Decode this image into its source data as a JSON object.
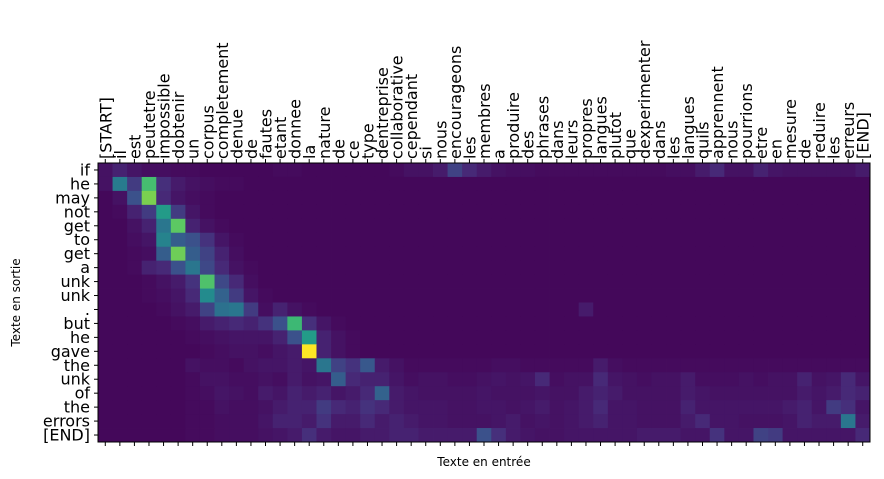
{
  "chart_data": {
    "type": "heatmap",
    "title": "",
    "xlabel": "Texte en entrée",
    "ylabel": "Texte en sortie",
    "colormap": "viridis",
    "value_range": [
      0,
      1
    ],
    "x_tick_position": "top",
    "x_categories": [
      "[START]",
      "il",
      "est",
      "peutetre",
      "impossible",
      "dobtenir",
      "un",
      "corpus",
      "completement",
      "denue",
      "de",
      "fautes",
      "etant",
      "donnee",
      "la",
      "nature",
      "de",
      "ce",
      "type",
      "dentreprise",
      "collaborative",
      "cependant",
      "si",
      "nous",
      "encourageons",
      "les",
      "membres",
      "a",
      "produire",
      "des",
      "phrases",
      "dans",
      "leurs",
      "propres",
      "langues",
      "plutot",
      "que",
      "dexperimenter",
      "dans",
      "les",
      "langues",
      "quils",
      "apprennent",
      "nous",
      "pourrions",
      "etre",
      "en",
      "mesure",
      "de",
      "reduire",
      "les",
      "erreurs",
      "[END]"
    ],
    "y_categories": [
      "if",
      "he",
      "may",
      "not",
      "get",
      "to",
      "get",
      "a",
      "unk",
      "unk",
      ".",
      "but",
      "he",
      "gave",
      "the",
      "unk",
      "of",
      "the",
      "errors",
      "[END]"
    ],
    "values": [
      [
        0.05,
        0.1,
        0.06,
        0.04,
        0.04,
        0.03,
        0.03,
        0.02,
        0.02,
        0.02,
        0.02,
        0.02,
        0.03,
        0.03,
        0.02,
        0.02,
        0.02,
        0.02,
        0.02,
        0.02,
        0.03,
        0.05,
        0.05,
        0.08,
        0.2,
        0.12,
        0.08,
        0.05,
        0.04,
        0.04,
        0.03,
        0.03,
        0.03,
        0.03,
        0.03,
        0.03,
        0.03,
        0.03,
        0.03,
        0.04,
        0.04,
        0.08,
        0.12,
        0.05,
        0.05,
        0.1,
        0.06,
        0.05,
        0.05,
        0.05,
        0.05,
        0.05,
        0.08
      ],
      [
        0.05,
        0.42,
        0.18,
        0.7,
        0.14,
        0.08,
        0.05,
        0.04,
        0.03,
        0.03,
        0.02,
        0.02,
        0.02,
        0.02,
        0.02,
        0.02,
        0.02,
        0.02,
        0.02,
        0.02,
        0.02,
        0.02,
        0.02,
        0.02,
        0.02,
        0.02,
        0.02,
        0.02,
        0.02,
        0.02,
        0.02,
        0.02,
        0.02,
        0.02,
        0.02,
        0.02,
        0.02,
        0.02,
        0.02,
        0.02,
        0.02,
        0.02,
        0.02,
        0.02,
        0.02,
        0.02,
        0.02,
        0.02,
        0.02,
        0.02,
        0.02,
        0.02,
        0.02
      ],
      [
        0.02,
        0.05,
        0.25,
        0.8,
        0.12,
        0.06,
        0.04,
        0.03,
        0.02,
        0.02,
        0.02,
        0.02,
        0.02,
        0.02,
        0.02,
        0.02,
        0.02,
        0.02,
        0.02,
        0.02,
        0.02,
        0.02,
        0.02,
        0.02,
        0.02,
        0.02,
        0.02,
        0.02,
        0.02,
        0.02,
        0.02,
        0.02,
        0.02,
        0.02,
        0.02,
        0.02,
        0.02,
        0.02,
        0.02,
        0.02,
        0.02,
        0.02,
        0.02,
        0.02,
        0.02,
        0.02,
        0.02,
        0.02,
        0.02,
        0.02,
        0.02,
        0.02,
        0.02
      ],
      [
        0.02,
        0.03,
        0.1,
        0.18,
        0.55,
        0.18,
        0.06,
        0.03,
        0.02,
        0.02,
        0.02,
        0.02,
        0.02,
        0.02,
        0.02,
        0.02,
        0.02,
        0.02,
        0.02,
        0.02,
        0.02,
        0.02,
        0.02,
        0.02,
        0.02,
        0.02,
        0.02,
        0.02,
        0.02,
        0.02,
        0.02,
        0.02,
        0.02,
        0.02,
        0.02,
        0.02,
        0.02,
        0.02,
        0.02,
        0.02,
        0.02,
        0.02,
        0.02,
        0.02,
        0.02,
        0.02,
        0.02,
        0.02,
        0.02,
        0.02,
        0.02,
        0.02,
        0.02
      ],
      [
        0.02,
        0.02,
        0.05,
        0.1,
        0.4,
        0.75,
        0.1,
        0.05,
        0.03,
        0.02,
        0.02,
        0.02,
        0.02,
        0.02,
        0.02,
        0.02,
        0.02,
        0.02,
        0.02,
        0.02,
        0.02,
        0.02,
        0.02,
        0.02,
        0.02,
        0.02,
        0.02,
        0.02,
        0.02,
        0.02,
        0.02,
        0.02,
        0.02,
        0.02,
        0.02,
        0.02,
        0.02,
        0.02,
        0.02,
        0.02,
        0.02,
        0.02,
        0.02,
        0.02,
        0.02,
        0.02,
        0.02,
        0.02,
        0.02,
        0.02,
        0.02,
        0.02,
        0.02
      ],
      [
        0.02,
        0.02,
        0.04,
        0.06,
        0.45,
        0.3,
        0.25,
        0.15,
        0.06,
        0.03,
        0.02,
        0.02,
        0.02,
        0.02,
        0.02,
        0.02,
        0.02,
        0.02,
        0.02,
        0.02,
        0.02,
        0.02,
        0.02,
        0.02,
        0.02,
        0.02,
        0.02,
        0.02,
        0.02,
        0.02,
        0.02,
        0.02,
        0.02,
        0.02,
        0.02,
        0.02,
        0.02,
        0.02,
        0.02,
        0.02,
        0.02,
        0.02,
        0.02,
        0.02,
        0.02,
        0.02,
        0.02,
        0.02,
        0.02,
        0.02,
        0.02,
        0.02,
        0.02
      ],
      [
        0.02,
        0.02,
        0.03,
        0.04,
        0.3,
        0.78,
        0.3,
        0.2,
        0.1,
        0.04,
        0.02,
        0.02,
        0.02,
        0.02,
        0.02,
        0.02,
        0.02,
        0.02,
        0.02,
        0.02,
        0.02,
        0.02,
        0.02,
        0.02,
        0.02,
        0.02,
        0.02,
        0.02,
        0.02,
        0.02,
        0.02,
        0.02,
        0.02,
        0.02,
        0.02,
        0.02,
        0.02,
        0.02,
        0.02,
        0.02,
        0.02,
        0.02,
        0.02,
        0.02,
        0.02,
        0.02,
        0.02,
        0.02,
        0.02,
        0.02,
        0.02,
        0.02,
        0.02
      ],
      [
        0.02,
        0.02,
        0.03,
        0.1,
        0.12,
        0.25,
        0.4,
        0.22,
        0.12,
        0.05,
        0.03,
        0.02,
        0.02,
        0.02,
        0.02,
        0.02,
        0.02,
        0.02,
        0.02,
        0.02,
        0.02,
        0.02,
        0.02,
        0.02,
        0.02,
        0.02,
        0.02,
        0.02,
        0.02,
        0.02,
        0.02,
        0.02,
        0.02,
        0.02,
        0.02,
        0.02,
        0.02,
        0.02,
        0.02,
        0.02,
        0.02,
        0.02,
        0.02,
        0.02,
        0.02,
        0.02,
        0.02,
        0.02,
        0.02,
        0.02,
        0.02,
        0.02,
        0.02
      ],
      [
        0.02,
        0.02,
        0.02,
        0.03,
        0.05,
        0.08,
        0.15,
        0.72,
        0.22,
        0.12,
        0.04,
        0.02,
        0.02,
        0.02,
        0.02,
        0.02,
        0.02,
        0.02,
        0.02,
        0.02,
        0.02,
        0.02,
        0.02,
        0.02,
        0.02,
        0.02,
        0.02,
        0.02,
        0.02,
        0.02,
        0.02,
        0.02,
        0.02,
        0.02,
        0.02,
        0.02,
        0.02,
        0.02,
        0.02,
        0.02,
        0.02,
        0.02,
        0.02,
        0.02,
        0.02,
        0.02,
        0.02,
        0.02,
        0.02,
        0.02,
        0.02,
        0.02,
        0.02
      ],
      [
        0.02,
        0.02,
        0.02,
        0.03,
        0.04,
        0.06,
        0.12,
        0.48,
        0.32,
        0.18,
        0.06,
        0.03,
        0.02,
        0.02,
        0.02,
        0.02,
        0.02,
        0.02,
        0.02,
        0.02,
        0.02,
        0.02,
        0.02,
        0.02,
        0.02,
        0.02,
        0.02,
        0.02,
        0.02,
        0.02,
        0.02,
        0.02,
        0.02,
        0.02,
        0.02,
        0.02,
        0.02,
        0.02,
        0.02,
        0.02,
        0.02,
        0.02,
        0.02,
        0.02,
        0.02,
        0.02,
        0.02,
        0.02,
        0.02,
        0.02,
        0.02,
        0.02,
        0.02
      ],
      [
        0.02,
        0.02,
        0.02,
        0.02,
        0.03,
        0.05,
        0.08,
        0.2,
        0.38,
        0.4,
        0.18,
        0.04,
        0.1,
        0.05,
        0.03,
        0.02,
        0.02,
        0.02,
        0.02,
        0.02,
        0.02,
        0.02,
        0.02,
        0.02,
        0.02,
        0.02,
        0.02,
        0.02,
        0.02,
        0.02,
        0.02,
        0.02,
        0.02,
        0.08,
        0.02,
        0.02,
        0.02,
        0.02,
        0.02,
        0.02,
        0.02,
        0.02,
        0.02,
        0.02,
        0.02,
        0.02,
        0.02,
        0.02,
        0.02,
        0.02,
        0.02,
        0.02,
        0.02
      ],
      [
        0.02,
        0.02,
        0.02,
        0.02,
        0.02,
        0.03,
        0.04,
        0.08,
        0.1,
        0.12,
        0.1,
        0.15,
        0.25,
        0.68,
        0.14,
        0.06,
        0.03,
        0.02,
        0.02,
        0.02,
        0.02,
        0.02,
        0.02,
        0.02,
        0.02,
        0.02,
        0.02,
        0.02,
        0.02,
        0.02,
        0.02,
        0.02,
        0.02,
        0.02,
        0.02,
        0.02,
        0.02,
        0.02,
        0.02,
        0.02,
        0.02,
        0.02,
        0.02,
        0.02,
        0.02,
        0.02,
        0.02,
        0.02,
        0.02,
        0.02,
        0.02,
        0.02,
        0.02
      ],
      [
        0.02,
        0.02,
        0.02,
        0.02,
        0.02,
        0.02,
        0.03,
        0.04,
        0.05,
        0.06,
        0.06,
        0.06,
        0.1,
        0.25,
        0.55,
        0.1,
        0.05,
        0.03,
        0.02,
        0.02,
        0.02,
        0.02,
        0.02,
        0.02,
        0.02,
        0.02,
        0.02,
        0.02,
        0.02,
        0.02,
        0.02,
        0.02,
        0.02,
        0.02,
        0.02,
        0.02,
        0.02,
        0.02,
        0.02,
        0.02,
        0.02,
        0.02,
        0.02,
        0.02,
        0.02,
        0.02,
        0.02,
        0.02,
        0.02,
        0.02,
        0.02,
        0.02,
        0.02
      ],
      [
        0.02,
        0.02,
        0.02,
        0.02,
        0.02,
        0.02,
        0.02,
        0.03,
        0.04,
        0.05,
        0.05,
        0.04,
        0.06,
        0.08,
        1.0,
        0.1,
        0.05,
        0.03,
        0.02,
        0.02,
        0.02,
        0.02,
        0.02,
        0.02,
        0.02,
        0.02,
        0.02,
        0.02,
        0.02,
        0.02,
        0.02,
        0.02,
        0.02,
        0.02,
        0.02,
        0.02,
        0.02,
        0.02,
        0.02,
        0.02,
        0.02,
        0.02,
        0.02,
        0.02,
        0.02,
        0.02,
        0.02,
        0.02,
        0.02,
        0.02,
        0.02,
        0.02,
        0.02
      ],
      [
        0.02,
        0.02,
        0.02,
        0.02,
        0.02,
        0.02,
        0.05,
        0.04,
        0.04,
        0.03,
        0.05,
        0.06,
        0.06,
        0.08,
        0.06,
        0.4,
        0.2,
        0.15,
        0.28,
        0.08,
        0.05,
        0.03,
        0.03,
        0.03,
        0.03,
        0.03,
        0.03,
        0.04,
        0.04,
        0.03,
        0.03,
        0.03,
        0.03,
        0.03,
        0.08,
        0.04,
        0.03,
        0.03,
        0.03,
        0.03,
        0.03,
        0.03,
        0.03,
        0.03,
        0.03,
        0.03,
        0.03,
        0.03,
        0.03,
        0.03,
        0.03,
        0.03,
        0.03
      ],
      [
        0.02,
        0.02,
        0.02,
        0.02,
        0.02,
        0.02,
        0.03,
        0.05,
        0.05,
        0.04,
        0.04,
        0.05,
        0.04,
        0.08,
        0.05,
        0.06,
        0.3,
        0.12,
        0.1,
        0.1,
        0.06,
        0.04,
        0.05,
        0.05,
        0.04,
        0.04,
        0.05,
        0.06,
        0.05,
        0.06,
        0.12,
        0.04,
        0.05,
        0.05,
        0.12,
        0.06,
        0.05,
        0.04,
        0.05,
        0.05,
        0.08,
        0.04,
        0.04,
        0.04,
        0.05,
        0.04,
        0.05,
        0.05,
        0.1,
        0.05,
        0.06,
        0.12,
        0.06
      ],
      [
        0.02,
        0.02,
        0.02,
        0.02,
        0.02,
        0.02,
        0.03,
        0.04,
        0.06,
        0.05,
        0.04,
        0.08,
        0.06,
        0.1,
        0.08,
        0.1,
        0.06,
        0.08,
        0.12,
        0.32,
        0.08,
        0.06,
        0.05,
        0.05,
        0.05,
        0.05,
        0.06,
        0.05,
        0.05,
        0.05,
        0.06,
        0.05,
        0.05,
        0.08,
        0.1,
        0.08,
        0.05,
        0.05,
        0.05,
        0.05,
        0.08,
        0.06,
        0.05,
        0.05,
        0.05,
        0.05,
        0.05,
        0.05,
        0.08,
        0.06,
        0.08,
        0.12,
        0.1
      ],
      [
        0.02,
        0.02,
        0.02,
        0.02,
        0.02,
        0.02,
        0.03,
        0.03,
        0.05,
        0.04,
        0.04,
        0.05,
        0.08,
        0.1,
        0.1,
        0.18,
        0.12,
        0.1,
        0.15,
        0.12,
        0.08,
        0.06,
        0.06,
        0.06,
        0.05,
        0.05,
        0.06,
        0.06,
        0.05,
        0.06,
        0.08,
        0.05,
        0.06,
        0.08,
        0.12,
        0.06,
        0.06,
        0.05,
        0.05,
        0.05,
        0.1,
        0.06,
        0.06,
        0.06,
        0.06,
        0.06,
        0.06,
        0.08,
        0.1,
        0.06,
        0.18,
        0.14,
        0.06
      ],
      [
        0.02,
        0.02,
        0.02,
        0.02,
        0.02,
        0.02,
        0.03,
        0.03,
        0.04,
        0.04,
        0.04,
        0.06,
        0.1,
        0.1,
        0.08,
        0.15,
        0.08,
        0.08,
        0.12,
        0.08,
        0.1,
        0.08,
        0.06,
        0.06,
        0.05,
        0.05,
        0.05,
        0.06,
        0.08,
        0.05,
        0.06,
        0.05,
        0.06,
        0.08,
        0.1,
        0.06,
        0.06,
        0.05,
        0.05,
        0.05,
        0.08,
        0.12,
        0.06,
        0.06,
        0.05,
        0.05,
        0.05,
        0.06,
        0.1,
        0.08,
        0.08,
        0.4,
        0.08
      ],
      [
        0.02,
        0.02,
        0.02,
        0.02,
        0.02,
        0.02,
        0.03,
        0.03,
        0.04,
        0.04,
        0.04,
        0.05,
        0.06,
        0.08,
        0.14,
        0.08,
        0.06,
        0.06,
        0.08,
        0.08,
        0.1,
        0.1,
        0.08,
        0.08,
        0.08,
        0.08,
        0.25,
        0.14,
        0.08,
        0.06,
        0.05,
        0.05,
        0.06,
        0.06,
        0.06,
        0.06,
        0.06,
        0.08,
        0.08,
        0.08,
        0.06,
        0.06,
        0.15,
        0.06,
        0.06,
        0.2,
        0.18,
        0.06,
        0.06,
        0.06,
        0.06,
        0.06,
        0.12
      ]
    ]
  }
}
